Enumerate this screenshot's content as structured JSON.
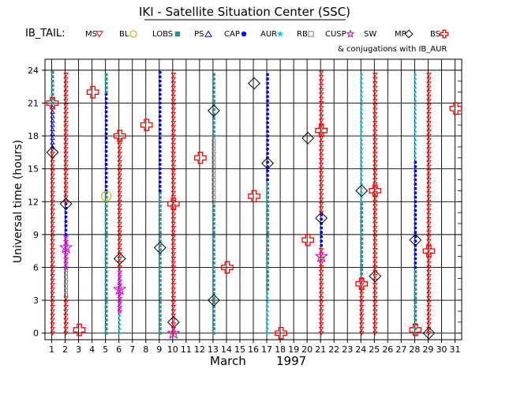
{
  "chart_data": {
    "type": "scatter",
    "title": "IKI - Satellite Situation Center (SSC)",
    "satellite": "IB_TAIL:",
    "legend": [
      {
        "label": "MS",
        "marker": "triangle-down",
        "color": "#ff0000"
      },
      {
        "label": "BL",
        "marker": "open-circle",
        "color": "#e0b000"
      },
      {
        "label": "LOBS",
        "marker": "square",
        "color": "#2f8f8f"
      },
      {
        "label": "PS",
        "marker": "triangle-up",
        "color": "#0000ff"
      },
      {
        "label": "CAP",
        "marker": "filled-circle",
        "color": "#0000ff"
      },
      {
        "label": "AUR",
        "marker": "star",
        "color": "#00c8ff"
      },
      {
        "label": "RB",
        "marker": "open-square",
        "color": "#7f7f7f"
      },
      {
        "label": "CUSP",
        "marker": "open-star",
        "color": "#d000d0"
      },
      {
        "label": "SW",
        "marker": "bowtie",
        "color": "#ff0000"
      },
      {
        "label": "MP",
        "marker": "diamond",
        "color": "#000000"
      },
      {
        "label": "BS",
        "marker": "cross",
        "color": "#ff0000"
      }
    ],
    "conjugations_note": "& conjugations with IB_AUR",
    "xlabel": "March",
    "xlabel_year": "1997",
    "ylabel": "Universal time (hours)",
    "x_ticks": [
      1,
      2,
      3,
      4,
      5,
      6,
      7,
      8,
      9,
      10,
      11,
      12,
      13,
      14,
      15,
      16,
      17,
      18,
      19,
      20,
      21,
      22,
      23,
      24,
      25,
      26,
      27,
      28,
      29,
      30,
      31
    ],
    "y_ticks": [
      0,
      3,
      6,
      9,
      12,
      15,
      18,
      21,
      24
    ],
    "xlim": [
      0.5,
      31.5
    ],
    "ylim": [
      -0.6,
      25
    ],
    "grid": true,
    "columns": [
      {
        "day": 1,
        "segments": [
          {
            "from": 0,
            "to": 17,
            "region": "MS"
          },
          {
            "from": 17,
            "to": 21,
            "region": "PS"
          },
          {
            "from": 21,
            "to": 24,
            "region": "LOBS"
          }
        ]
      },
      {
        "day": 2,
        "segments": [
          {
            "from": 0,
            "to": 3.5,
            "region": "MS"
          },
          {
            "from": 3.5,
            "to": 6,
            "region": "RB"
          },
          {
            "from": 6,
            "to": 9,
            "region": "CUSP"
          },
          {
            "from": 9,
            "to": 12,
            "region": "CAP"
          },
          {
            "from": 12,
            "to": 24,
            "region": "MS"
          }
        ]
      },
      {
        "day": 3,
        "segments": [
          {
            "from": 0,
            "to": 24,
            "region": "SW"
          }
        ]
      },
      {
        "day": 4,
        "segments": [
          {
            "from": 0,
            "to": 24,
            "region": "SW"
          }
        ]
      },
      {
        "day": 5,
        "segments": [
          {
            "from": 0,
            "to": 13,
            "region": "LOBS"
          },
          {
            "from": 13,
            "to": 22,
            "region": "CAP"
          },
          {
            "from": 22,
            "to": 24,
            "region": "LOBS"
          }
        ]
      },
      {
        "day": 6,
        "segments": [
          {
            "from": 0,
            "to": 2,
            "region": "AUR"
          },
          {
            "from": 2,
            "to": 6,
            "region": "CUSP"
          },
          {
            "from": 6,
            "to": 18,
            "region": "MS"
          },
          {
            "from": 18,
            "to": 24,
            "region": "SW"
          }
        ]
      },
      {
        "day": 7,
        "segments": [
          {
            "from": 0,
            "to": 24,
            "region": "SW"
          }
        ]
      },
      {
        "day": 8,
        "segments": [
          {
            "from": 0,
            "to": 24,
            "region": "SW"
          }
        ]
      },
      {
        "day": 9,
        "segments": [
          {
            "from": 0,
            "to": 13,
            "region": "LOBS"
          },
          {
            "from": 13,
            "to": 24,
            "region": "CAP"
          }
        ]
      },
      {
        "day": 10,
        "segments": [
          {
            "from": 0,
            "to": 24,
            "region": "MS"
          }
        ]
      },
      {
        "day": 11,
        "segments": [
          {
            "from": 0,
            "to": 24,
            "region": "SW"
          }
        ]
      },
      {
        "day": 12,
        "segments": [
          {
            "from": 0,
            "to": 24,
            "region": "SW"
          }
        ]
      },
      {
        "day": 13,
        "segments": [
          {
            "from": 0,
            "to": 12,
            "region": "LOBS"
          },
          {
            "from": 12,
            "to": 18,
            "region": "RB"
          },
          {
            "from": 18,
            "to": 24,
            "region": "LOBS"
          }
        ]
      },
      {
        "day": 14,
        "segments": [
          {
            "from": 0,
            "to": 24,
            "region": "SW"
          }
        ]
      },
      {
        "day": 15,
        "segments": [
          {
            "from": 0,
            "to": 24,
            "region": "SW"
          }
        ]
      },
      {
        "day": 16,
        "segments": [
          {
            "from": 0,
            "to": 24,
            "region": "SW"
          }
        ]
      },
      {
        "day": 17,
        "segments": [
          {
            "from": 0,
            "to": 4,
            "region": "AUR"
          },
          {
            "from": 4,
            "to": 14,
            "region": "LOBS"
          },
          {
            "from": 14,
            "to": 24,
            "region": "CAP"
          }
        ]
      },
      {
        "day": 18,
        "segments": [
          {
            "from": 0,
            "to": 24,
            "region": "SW"
          }
        ]
      },
      {
        "day": 19,
        "segments": [
          {
            "from": 0,
            "to": 24,
            "region": "SW"
          }
        ]
      },
      {
        "day": 20,
        "segments": [
          {
            "from": 0,
            "to": 24,
            "region": "SW"
          }
        ]
      },
      {
        "day": 21,
        "segments": [
          {
            "from": 0,
            "to": 8,
            "region": "MS"
          },
          {
            "from": 8,
            "to": 11,
            "region": "CAP"
          },
          {
            "from": 11,
            "to": 24,
            "region": "MS"
          }
        ]
      },
      {
        "day": 22,
        "segments": [
          {
            "from": 0,
            "to": 24,
            "region": "SW"
          }
        ]
      },
      {
        "day": 23,
        "segments": [
          {
            "from": 0,
            "to": 24,
            "region": "SW"
          }
        ]
      },
      {
        "day": 24,
        "segments": [
          {
            "from": 0,
            "to": 5,
            "region": "MS"
          },
          {
            "from": 5,
            "to": 12,
            "region": "LOBS"
          },
          {
            "from": 12,
            "to": 24,
            "region": "AUR"
          }
        ]
      },
      {
        "day": 25,
        "segments": [
          {
            "from": 0,
            "to": 24,
            "region": "MS"
          }
        ]
      },
      {
        "day": 26,
        "segments": [
          {
            "from": 0,
            "to": 24,
            "region": "SW"
          }
        ]
      },
      {
        "day": 27,
        "segments": [
          {
            "from": 0,
            "to": 24,
            "region": "SW"
          }
        ]
      },
      {
        "day": 28,
        "segments": [
          {
            "from": 0,
            "to": 6,
            "region": "LOBS"
          },
          {
            "from": 6,
            "to": 16,
            "region": "CAP"
          },
          {
            "from": 16,
            "to": 24,
            "region": "AUR"
          }
        ]
      },
      {
        "day": 29,
        "segments": [
          {
            "from": 0,
            "to": 24,
            "region": "MS"
          }
        ]
      },
      {
        "day": 30,
        "segments": [
          {
            "from": 0,
            "to": 24,
            "region": "SW"
          }
        ]
      },
      {
        "day": 31,
        "segments": [
          {
            "from": 0,
            "to": 24,
            "region": "SW"
          }
        ]
      }
    ],
    "crossings": [
      {
        "day": 1,
        "ut": 16.5,
        "type": "MP"
      },
      {
        "day": 1,
        "ut": 21,
        "type": "BS"
      },
      {
        "day": 2,
        "ut": 11.8,
        "type": "MP"
      },
      {
        "day": 2,
        "ut": 7.8,
        "type": "CUSP"
      },
      {
        "day": 3,
        "ut": 0.3,
        "type": "BS"
      },
      {
        "day": 4,
        "ut": 22,
        "type": "BS"
      },
      {
        "day": 5,
        "ut": 12.5,
        "type": "BL"
      },
      {
        "day": 6,
        "ut": 18,
        "type": "BS"
      },
      {
        "day": 6,
        "ut": 6.8,
        "type": "MP"
      },
      {
        "day": 6,
        "ut": 4,
        "type": "CUSP"
      },
      {
        "day": 8,
        "ut": 19,
        "type": "BS"
      },
      {
        "day": 9,
        "ut": 7.8,
        "type": "MP"
      },
      {
        "day": 10,
        "ut": 11.8,
        "type": "BS"
      },
      {
        "day": 10,
        "ut": 1,
        "type": "MP"
      },
      {
        "day": 10,
        "ut": 0,
        "type": "CUSP"
      },
      {
        "day": 12,
        "ut": 16,
        "type": "BS"
      },
      {
        "day": 13,
        "ut": 20.3,
        "type": "MP"
      },
      {
        "day": 13,
        "ut": 3,
        "type": "MP"
      },
      {
        "day": 14,
        "ut": 6,
        "type": "BS"
      },
      {
        "day": 16,
        "ut": 22.8,
        "type": "MP"
      },
      {
        "day": 16,
        "ut": 12.5,
        "type": "BS"
      },
      {
        "day": 17,
        "ut": 15.5,
        "type": "MP"
      },
      {
        "day": 18,
        "ut": 0,
        "type": "BS"
      },
      {
        "day": 20,
        "ut": 17.8,
        "type": "MP"
      },
      {
        "day": 20,
        "ut": 8.5,
        "type": "BS"
      },
      {
        "day": 21,
        "ut": 18.5,
        "type": "BS"
      },
      {
        "day": 21,
        "ut": 10.5,
        "type": "MP"
      },
      {
        "day": 21,
        "ut": 7,
        "type": "CUSP"
      },
      {
        "day": 24,
        "ut": 13,
        "type": "MP"
      },
      {
        "day": 24,
        "ut": 4.5,
        "type": "BS"
      },
      {
        "day": 25,
        "ut": 13,
        "type": "BS"
      },
      {
        "day": 25,
        "ut": 5.2,
        "type": "MP"
      },
      {
        "day": 28,
        "ut": 8.5,
        "type": "MP"
      },
      {
        "day": 28,
        "ut": 0.3,
        "type": "BS"
      },
      {
        "day": 29,
        "ut": 7.5,
        "type": "BS"
      },
      {
        "day": 29,
        "ut": 0,
        "type": "MP"
      },
      {
        "day": 31,
        "ut": 20.5,
        "type": "BS"
      }
    ]
  }
}
